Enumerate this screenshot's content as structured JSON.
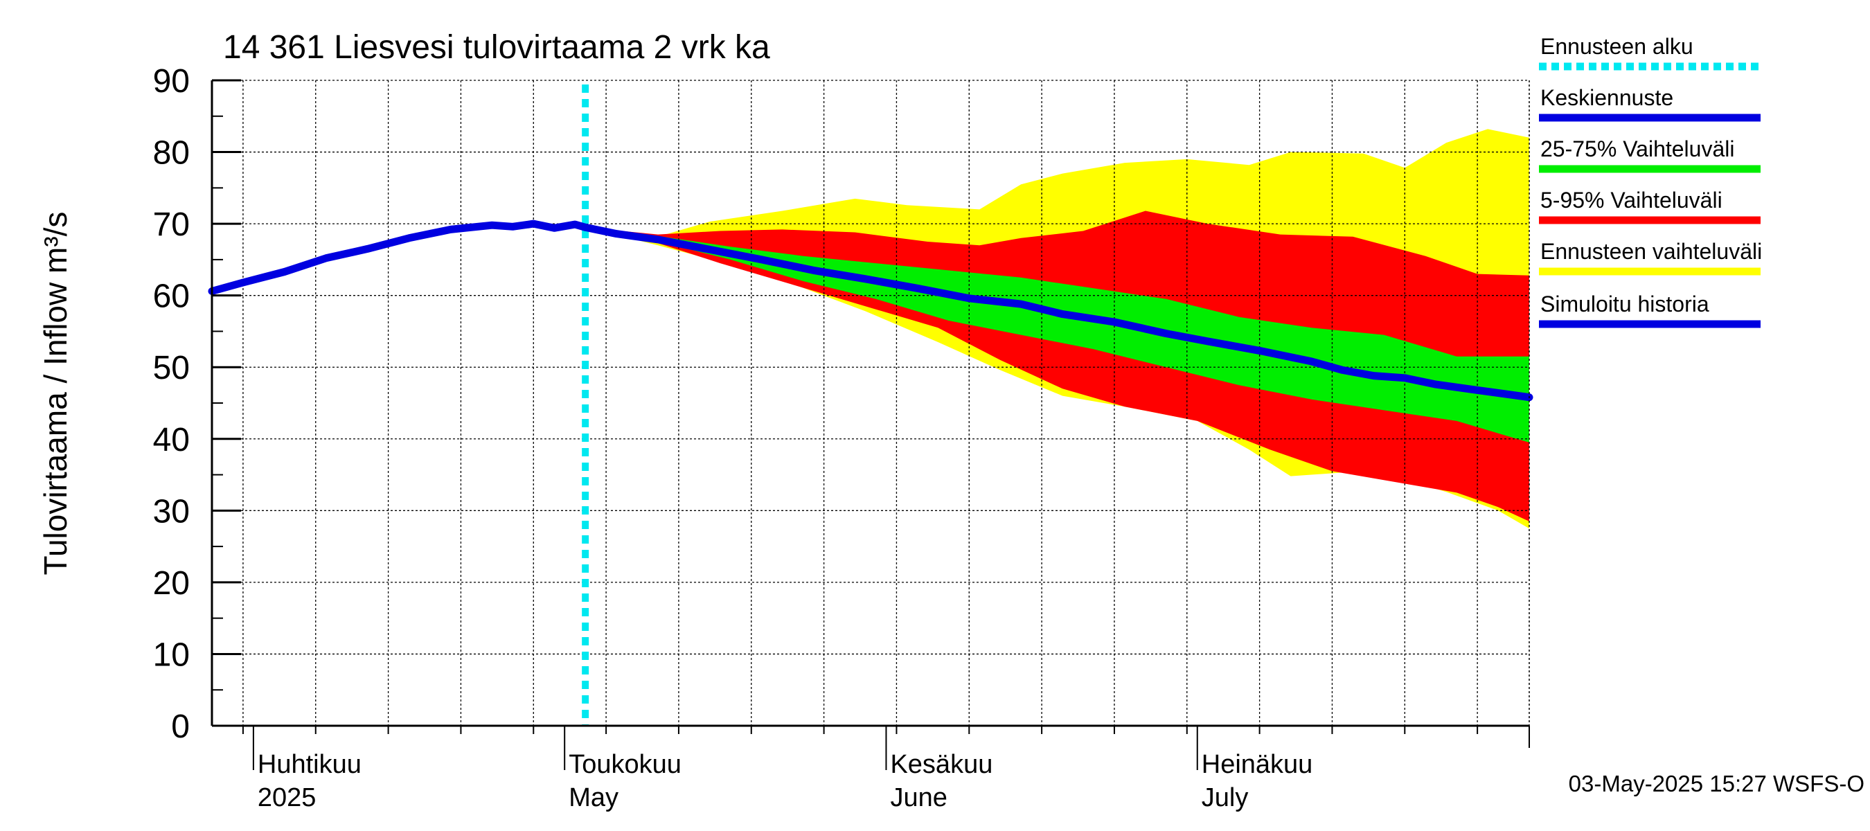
{
  "chart_data": {
    "type": "area",
    "title": "14 361 Liesvesi tulovirtaama 2 vrk ka",
    "ylabel": "Tulovirtaama / Inflow    m³/s",
    "ylim": [
      0,
      90
    ],
    "yticks": [
      0,
      10,
      20,
      30,
      40,
      50,
      60,
      70,
      80,
      90
    ],
    "xlim": [
      "2025-03-28",
      "2025-08-02"
    ],
    "forecast_start": "2025-05-03",
    "grid": true,
    "legend_position": "right",
    "month_labels": [
      {
        "date": "2025-04-01",
        "fi": "Huhtikuu",
        "en": "2025"
      },
      {
        "date": "2025-05-01",
        "fi": "Toukokuu",
        "en": "May"
      },
      {
        "date": "2025-06-01",
        "fi": "Kesäkuu",
        "en": "June"
      },
      {
        "date": "2025-07-01",
        "fi": "Heinäkuu",
        "en": "July"
      }
    ],
    "legend": [
      {
        "label": "Ennusteen alku",
        "color": "#00e8f0",
        "style": "dotted"
      },
      {
        "label": "Keskiennuste",
        "color": "#0000e0",
        "style": "solid"
      },
      {
        "label": "25-75% Vaihteluväli",
        "color": "#00ee00",
        "style": "solid"
      },
      {
        "label": "5-95% Vaihteluväli",
        "color": "#ff0000",
        "style": "solid"
      },
      {
        "label": "Ennusteen vaihteluväli",
        "color": "#ffff00",
        "style": "solid"
      },
      {
        "label": "Simuloitu historia",
        "color": "#0000e0",
        "style": "solid"
      }
    ],
    "history": {
      "name": "Simuloitu historia",
      "points": [
        [
          "2025-03-28",
          60.6
        ],
        [
          "2025-03-31",
          61.8
        ],
        [
          "2025-04-04",
          63.3
        ],
        [
          "2025-04-08",
          65.2
        ],
        [
          "2025-04-12",
          66.5
        ],
        [
          "2025-04-16",
          68.0
        ],
        [
          "2025-04-20",
          69.2
        ],
        [
          "2025-04-24",
          69.8
        ],
        [
          "2025-04-26",
          69.6
        ],
        [
          "2025-04-28",
          70.0
        ],
        [
          "2025-04-30",
          69.4
        ],
        [
          "2025-05-02",
          69.9
        ],
        [
          "2025-05-03",
          69.5
        ]
      ]
    },
    "median": {
      "name": "Keskiennuste",
      "points": [
        [
          "2025-05-03",
          69.5
        ],
        [
          "2025-05-06",
          68.6
        ],
        [
          "2025-05-10",
          67.8
        ],
        [
          "2025-05-15",
          66.4
        ],
        [
          "2025-05-20",
          65.0
        ],
        [
          "2025-05-25",
          63.5
        ],
        [
          "2025-05-30",
          62.3
        ],
        [
          "2025-06-04",
          61.0
        ],
        [
          "2025-06-09",
          59.6
        ],
        [
          "2025-06-14",
          58.8
        ],
        [
          "2025-06-18",
          57.4
        ],
        [
          "2025-06-23",
          56.3
        ],
        [
          "2025-06-28",
          54.7
        ],
        [
          "2025-07-02",
          53.6
        ],
        [
          "2025-07-07",
          52.3
        ],
        [
          "2025-07-12",
          50.8
        ],
        [
          "2025-07-15",
          49.6
        ],
        [
          "2025-07-18",
          48.8
        ],
        [
          "2025-07-21",
          48.5
        ],
        [
          "2025-07-24",
          47.6
        ],
        [
          "2025-07-28",
          46.8
        ],
        [
          "2025-08-02",
          45.8
        ]
      ]
    },
    "bands": [
      {
        "name": "Ennusteen vaihteluväli",
        "color": "#ffff00",
        "upper": [
          [
            "2025-05-03",
            69.5
          ],
          [
            "2025-05-10",
            68.2
          ],
          [
            "2025-05-15",
            70.3
          ],
          [
            "2025-05-22",
            71.8
          ],
          [
            "2025-05-29",
            73.5
          ],
          [
            "2025-06-03",
            72.6
          ],
          [
            "2025-06-10",
            72.0
          ],
          [
            "2025-06-14",
            75.5
          ],
          [
            "2025-06-18",
            77.0
          ],
          [
            "2025-06-24",
            78.5
          ],
          [
            "2025-06-30",
            79.0
          ],
          [
            "2025-07-06",
            78.2
          ],
          [
            "2025-07-10",
            80.0
          ],
          [
            "2025-07-17",
            79.8
          ],
          [
            "2025-07-21",
            77.8
          ],
          [
            "2025-07-25",
            81.3
          ],
          [
            "2025-07-29",
            83.2
          ],
          [
            "2025-08-02",
            82.0
          ]
        ],
        "lower": [
          [
            "2025-05-03",
            69.5
          ],
          [
            "2025-05-10",
            67.0
          ],
          [
            "2025-05-16",
            64.7
          ],
          [
            "2025-05-23",
            61.6
          ],
          [
            "2025-05-30",
            57.8
          ],
          [
            "2025-06-06",
            53.5
          ],
          [
            "2025-06-12",
            49.6
          ],
          [
            "2025-06-18",
            46.0
          ],
          [
            "2025-06-24",
            44.5
          ],
          [
            "2025-07-01",
            42.5
          ],
          [
            "2025-07-06",
            38.5
          ],
          [
            "2025-07-10",
            34.8
          ],
          [
            "2025-07-15",
            35.3
          ],
          [
            "2025-07-20",
            34.8
          ],
          [
            "2025-07-25",
            32.6
          ],
          [
            "2025-07-30",
            30.0
          ],
          [
            "2025-08-02",
            27.5
          ]
        ]
      },
      {
        "name": "5-95% Vaihteluväli",
        "color": "#ff0000",
        "upper": [
          [
            "2025-05-03",
            69.5
          ],
          [
            "2025-05-10",
            68.5
          ],
          [
            "2025-05-16",
            69.0
          ],
          [
            "2025-05-22",
            69.2
          ],
          [
            "2025-05-29",
            68.8
          ],
          [
            "2025-06-05",
            67.5
          ],
          [
            "2025-06-10",
            67.0
          ],
          [
            "2025-06-14",
            68.0
          ],
          [
            "2025-06-20",
            69.0
          ],
          [
            "2025-06-26",
            71.8
          ],
          [
            "2025-07-02",
            70.0
          ],
          [
            "2025-07-09",
            68.5
          ],
          [
            "2025-07-16",
            68.2
          ],
          [
            "2025-07-23",
            65.5
          ],
          [
            "2025-07-28",
            63.0
          ],
          [
            "2025-08-02",
            62.8
          ]
        ],
        "lower": [
          [
            "2025-05-03",
            69.5
          ],
          [
            "2025-05-10",
            67.3
          ],
          [
            "2025-05-16",
            64.5
          ],
          [
            "2025-05-23",
            61.5
          ],
          [
            "2025-05-30",
            58.5
          ],
          [
            "2025-06-06",
            55.5
          ],
          [
            "2025-06-12",
            51.0
          ],
          [
            "2025-06-18",
            47.0
          ],
          [
            "2025-06-24",
            44.5
          ],
          [
            "2025-07-01",
            42.5
          ],
          [
            "2025-07-08",
            38.5
          ],
          [
            "2025-07-14",
            35.5
          ],
          [
            "2025-07-20",
            34.0
          ],
          [
            "2025-07-26",
            32.5
          ],
          [
            "2025-07-30",
            30.5
          ],
          [
            "2025-08-02",
            28.5
          ]
        ]
      },
      {
        "name": "25-75% Vaihteluväli",
        "color": "#00ee00",
        "upper": [
          [
            "2025-05-03",
            69.5
          ],
          [
            "2025-05-10",
            68.3
          ],
          [
            "2025-05-17",
            66.8
          ],
          [
            "2025-05-24",
            65.5
          ],
          [
            "2025-05-31",
            64.5
          ],
          [
            "2025-06-07",
            63.5
          ],
          [
            "2025-06-14",
            62.5
          ],
          [
            "2025-06-21",
            61.0
          ],
          [
            "2025-06-28",
            59.5
          ],
          [
            "2025-07-05",
            57.0
          ],
          [
            "2025-07-12",
            55.5
          ],
          [
            "2025-07-19",
            54.5
          ],
          [
            "2025-07-26",
            51.5
          ],
          [
            "2025-08-02",
            51.5
          ]
        ],
        "lower": [
          [
            "2025-05-03",
            69.5
          ],
          [
            "2025-05-10",
            67.5
          ],
          [
            "2025-05-17",
            65.0
          ],
          [
            "2025-05-24",
            62.0
          ],
          [
            "2025-05-31",
            59.5
          ],
          [
            "2025-06-07",
            56.5
          ],
          [
            "2025-06-14",
            54.5
          ],
          [
            "2025-06-21",
            52.5
          ],
          [
            "2025-06-28",
            50.0
          ],
          [
            "2025-07-05",
            47.5
          ],
          [
            "2025-07-12",
            45.5
          ],
          [
            "2025-07-19",
            44.0
          ],
          [
            "2025-07-26",
            42.5
          ],
          [
            "2025-08-02",
            39.5
          ]
        ]
      }
    ]
  },
  "timestamp": "03-May-2025 15:27 WSFS-O"
}
